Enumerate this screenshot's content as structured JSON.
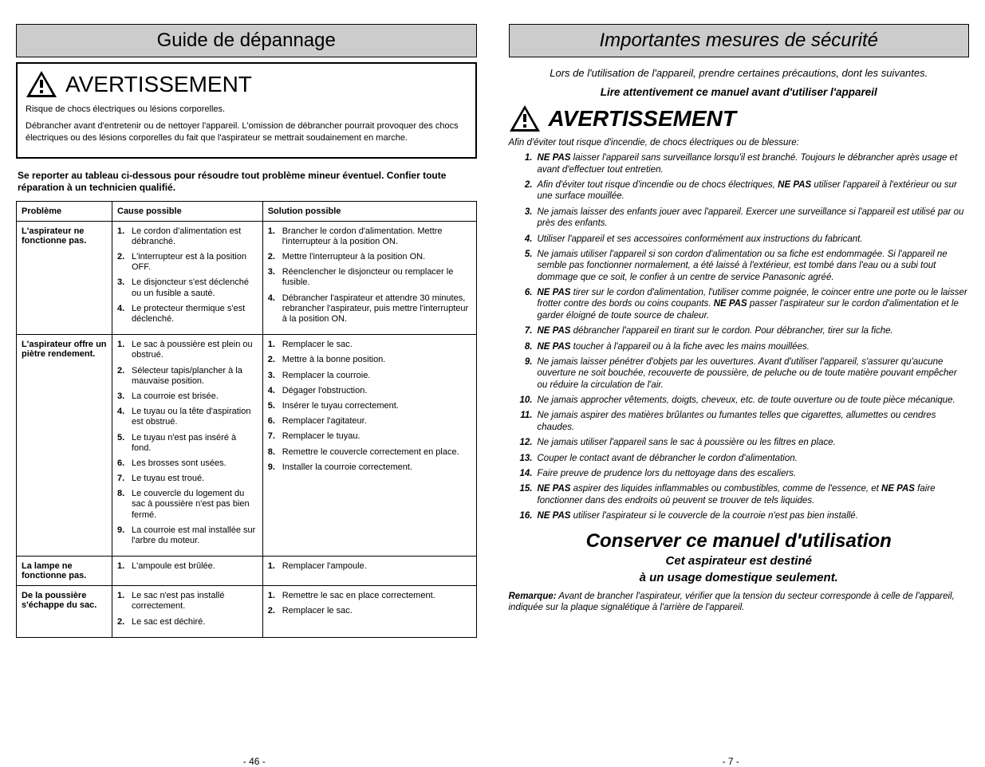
{
  "left": {
    "title": "Guide de dépannage",
    "warning_title": "AVERTISSEMENT",
    "warning_p1": "Risque de chocs électriques ou lésions corporelles.",
    "warning_p2": "Débrancher avant d'entretenir ou de nettoyer l'appareil. L'omission de débrancher pourrait provoquer des chocs électriques ou des lésions corporelles du fait que l'aspirateur se mettrait soudainement en marche.",
    "note": "Se reporter au tableau ci-dessous pour résoudre tout problème mineur éventuel.  Confier toute réparation à un technicien qualifié.",
    "headers": {
      "problem": "Problème",
      "cause": "Cause possible",
      "solution": "Solution possible"
    },
    "rows": [
      {
        "problem": "L'aspirateur ne fonctionne pas.",
        "causes": [
          "Le cordon d'alimentation est débranché.",
          "L'interrupteur est à la position OFF.",
          "Le disjoncteur s'est déclenché ou un fusible a sauté.",
          "Le protecteur thermique s'est déclenché."
        ],
        "solutions": [
          "Brancher le cordon d'alimentation. Mettre l'interrupteur à la position ON.",
          "Mettre l'interrupteur à la position ON.",
          "Réenclencher le disjoncteur ou remplacer le fusible.",
          "Débrancher l'aspirateur et attendre 30 minutes, rebrancher l'aspirateur, puis mettre l'interrupteur à la position ON."
        ]
      },
      {
        "problem": "L'aspirateur offre un piètre rendement.",
        "causes": [
          "Le sac à poussière est plein ou obstrué.",
          "Sélecteur tapis/plancher à la mauvaise position.",
          "La courroie est brisée.",
          "Le tuyau ou la tête d'aspiration est obstrué.",
          "Le tuyau n'est pas inséré à fond.",
          "Les brosses sont usées.",
          "Le tuyau est troué.",
          "Le couvercle du logement du sac à poussière n'est pas bien fermé.",
          "La courroie est mal installée sur l'arbre du moteur."
        ],
        "solutions": [
          "Remplacer le sac.",
          "Mettre à la bonne position.",
          "Remplacer la courroie.",
          "Dégager l'obstruction.",
          "Insérer le tuyau correctement.",
          "Remplacer l'agitateur.",
          "Remplacer le tuyau.",
          "Remettre le couvercle correctement en place.",
          "Installer la courroie correctement."
        ]
      },
      {
        "problem": "La lampe ne fonctionne pas.",
        "causes": [
          "L'ampoule est brûlée."
        ],
        "solutions": [
          "Remplacer l'ampoule."
        ]
      },
      {
        "problem": "De la poussière s'échappe du sac.",
        "causes": [
          "Le sac n'est pas installé correctement.",
          "Le sac est déchiré."
        ],
        "solutions": [
          "Remettre le sac en place correctement.",
          "Remplacer le sac."
        ]
      }
    ],
    "page": "- 46 -"
  },
  "right": {
    "title": "Importantes mesures de sécurité",
    "intro": "Lors de l'utilisation de l'appareil, prendre certaines précautions, dont les suivantes.",
    "read": "Lire attentivement ce manuel avant d'utiliser l'appareil",
    "warning_title": "AVERTISSEMENT",
    "afin": "Afin d'éviter tout risque d'incendie, de chocs électriques ou de blessure:",
    "items": [
      "<b>NE PAS</b> laisser l'appareil sans surveillance lorsqu'il est branché. Toujours le débrancher après usage et avant d'effectuer tout entretien.",
      "Afin d'éviter tout risque d'incendie ou de chocs électriques, <b>NE PAS</b> utiliser l'appareil à l'extérieur ou sur une surface mouillée.",
      "Ne jamais laisser des enfants jouer avec l'appareil. Exercer une surveillance si l'appareil est utilisé par ou près des enfants.",
      "Utiliser l'appareil et ses accessoires conformément aux instructions du fabricant.",
      "Ne jamais utiliser l'appareil si son cordon d'alimentation ou sa fiche est endommagée. Si l'appareil ne semble pas fonctionner normalement, a été laissé à l'extérieur, est tombé dans l'eau ou a subi tout dommage que ce soit, le confier à un centre de service Panasonic agréé.",
      "<b>NE PAS</b> tirer sur le cordon d'alimentation, l'utiliser comme poignée, le coincer entre une porte ou le laisser frotter contre des bords ou coins coupants. <b>NE PAS</b> passer l'aspirateur sur le cordon d'alimentation et le garder éloigné de toute source de chaleur.",
      "<b>NE PAS</b> débrancher l'appareil en tirant sur le cordon. Pour débrancher, tirer sur la fiche.",
      "<b>NE PAS</b> toucher à l'appareil ou à la fiche avec les mains mouillées.",
      "Ne jamais laisser pénétrer d'objets par les ouvertures. Avant d'utiliser l'appareil, s'assurer qu'aucune ouverture ne soit bouchée, recouverte de poussière, de peluche ou de toute matière pouvant empêcher ou réduire la circulation de l'air.",
      "Ne jamais approcher vêtements, doigts, cheveux, etc. de toute ouverture ou de toute pièce mécanique.",
      "Ne jamais aspirer des matières brûlantes ou fumantes telles que cigarettes, allumettes ou cendres chaudes.",
      "Ne jamais utiliser l'appareil sans le sac à poussière ou les filtres en place.",
      "Couper le contact avant de débrancher le cordon d'alimentation.",
      "Faire preuve de prudence lors du nettoyage dans des escaliers.",
      "<b>NE PAS</b> aspirer des liquides inflammables ou combustibles, comme de l'essence, et <b>NE PAS</b> faire fonctionner dans des endroits où peuvent se trouver de tels liquides.",
      "<b>NE PAS</b> utiliser l'aspirateur si le couvercle de la courroie n'est pas bien installé."
    ],
    "conserve": "Conserver ce manuel d'utilisation",
    "sub1": "Cet aspirateur est destiné",
    "sub2": "à un usage domestique seulement.",
    "remark_label": "Remarque:",
    "remark": "Avant de brancher l'aspirateur, vérifier que la tension du secteur corresponde à celle de l'appareil, indiquée sur la plaque signalétique à l'arrière de l'appareil.",
    "page": "- 7 -"
  }
}
